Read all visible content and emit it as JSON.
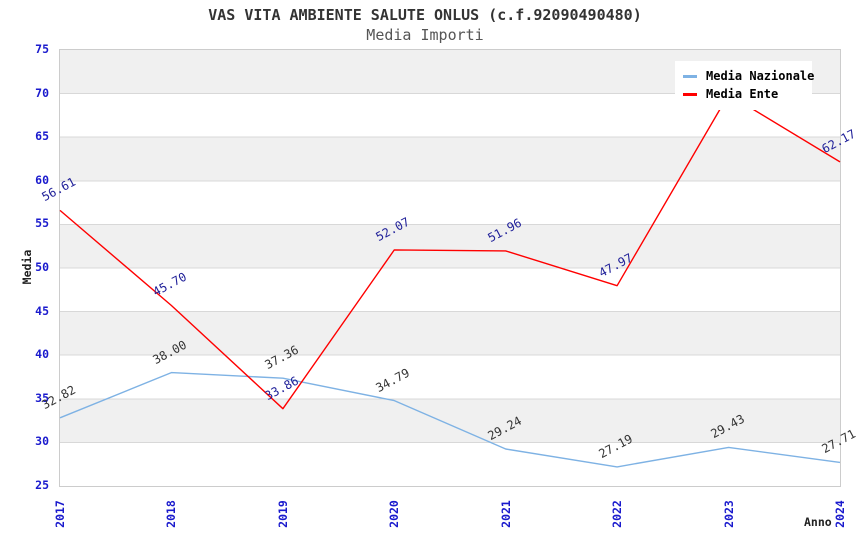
{
  "header": {
    "title": "VAS VITA AMBIENTE SALUTE ONLUS (c.f.92090490480)",
    "subtitle": "Media Importi"
  },
  "chart_data": {
    "type": "line",
    "title": "VAS VITA AMBIENTE SALUTE ONLUS (c.f.92090490480)",
    "subtitle": "Media Importi",
    "xlabel": "Anno",
    "ylabel": "Media",
    "categories": [
      "2017",
      "2018",
      "2019",
      "2020",
      "2021",
      "2022",
      "2023",
      "2024"
    ],
    "series": [
      {
        "name": "Media Nazionale",
        "color": "#7eb2e4",
        "label_color": "#333333",
        "values": [
          32.82,
          38.0,
          37.36,
          34.79,
          29.24,
          27.19,
          29.43,
          27.71
        ]
      },
      {
        "name": "Media Ente",
        "color": "#ff0000",
        "label_color": "#202099",
        "values": [
          56.61,
          45.7,
          33.86,
          52.07,
          51.96,
          47.97,
          69.9,
          62.17
        ]
      }
    ],
    "ylim": [
      25,
      75
    ],
    "ytick_step": 5,
    "grid": true,
    "band_fill": "#f0f0f0",
    "gridline_color": "#d8d8d8",
    "tick_color": "#1a1acd",
    "legend_position": "top-right",
    "legend_labels": [
      "Media Nazionale",
      "Media Ente"
    ]
  }
}
